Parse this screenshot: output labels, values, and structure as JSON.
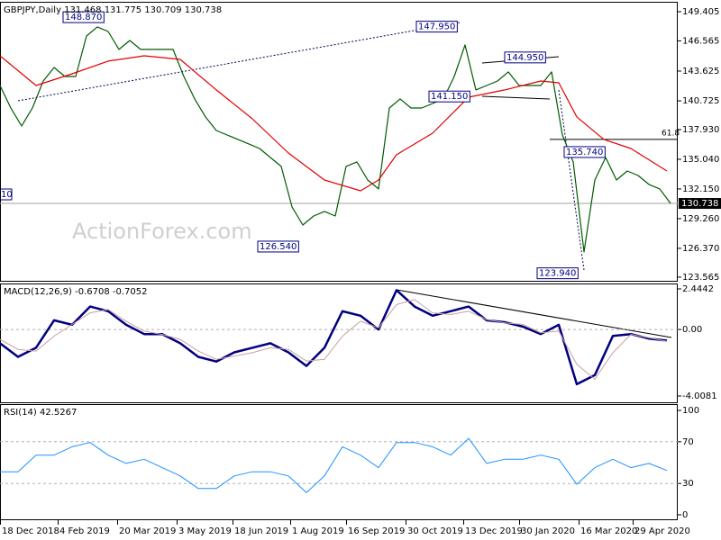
{
  "chart_data": [
    {
      "type": "line",
      "title": "GBPJPY,Daily  131.468 131.775 130.709 130.738",
      "watermark": "ActionForex.com",
      "crash_label": "10",
      "last": 130.738,
      "xlim": [
        0,
        376
      ],
      "ylim": [
        123.12,
        150.28
      ],
      "yticks": [
        149.405,
        146.565,
        143.625,
        140.725,
        {
          "value": 137.93,
          "label": "137.930"
        },
        {
          "value": 135.04,
          "label": "135.040"
        },
        {
          "value": 132.15,
          "label": "132.150"
        },
        {
          "value": 129.26,
          "label": "129.260"
        },
        {
          "value": 126.37,
          "label": "126.370"
        },
        123.565
      ],
      "annotations": [
        {
          "label": "148.870",
          "value": 148.87,
          "x": 35
        },
        {
          "label": "147.950",
          "value": 147.95,
          "x": 231
        },
        {
          "label": "144.950",
          "value": 144.95,
          "x": 280
        },
        {
          "label": "141.150",
          "value": 141.15,
          "x": 238
        },
        {
          "label": "135.740",
          "value": 135.74,
          "x": 313
        },
        {
          "label": "126.540",
          "value": 126.54,
          "x": 143
        },
        {
          "label": "123.940",
          "value": 123.94,
          "x": 298
        }
      ],
      "fib": {
        "label": "61.8",
        "value": 136.97,
        "x": 305
      },
      "series": [
        {
          "color": "#005a00",
          "width": 1.2,
          "x": [
            0,
            6,
            12,
            18,
            24,
            30,
            36,
            42,
            48,
            54,
            60,
            66,
            72,
            78,
            84,
            90,
            96,
            102,
            108,
            114,
            120,
            126,
            132,
            138,
            144,
            150,
            156,
            162,
            168,
            174,
            180,
            186,
            192,
            198,
            204,
            210,
            216,
            222,
            228,
            234,
            240,
            246,
            252,
            258,
            264,
            270,
            276,
            282,
            288,
            294,
            300,
            306,
            312,
            318,
            324,
            330,
            336,
            342,
            348,
            354,
            360,
            366,
            372
          ],
          "values": [
            142.22,
            140.03,
            138.28,
            140.03,
            142.66,
            143.97,
            143.1,
            143.1,
            147.04,
            147.92,
            147.48,
            145.73,
            146.6,
            145.73,
            145.73,
            145.73,
            145.73,
            143.1,
            140.91,
            139.16,
            137.84,
            137.4,
            136.97,
            136.53,
            136.09,
            135.21,
            134.34,
            130.4,
            128.64,
            129.52,
            129.96,
            129.52,
            134.34,
            134.78,
            133.02,
            132.15,
            140.03,
            140.91,
            140.03,
            140.03,
            140.47,
            140.91,
            143.1,
            146.17,
            141.79,
            142.22,
            142.66,
            143.54,
            142.22,
            142.22,
            142.22,
            143.54,
            137.4,
            134.78,
            126.02,
            133.02,
            135.21,
            133.02,
            133.9,
            133.46,
            132.59,
            132.15,
            130.74
          ]
        },
        {
          "color": "#e00000",
          "width": 1.2,
          "x": [
            0,
            20,
            40,
            60,
            80,
            100,
            120,
            140,
            160,
            180,
            200,
            210,
            220,
            240,
            260,
            280,
            300,
            310,
            320,
            335,
            350,
            370
          ],
          "values": [
            145.11,
            142.22,
            143.36,
            144.59,
            145.11,
            144.76,
            141.79,
            138.98,
            135.65,
            133.02,
            131.97,
            133.02,
            135.48,
            137.58,
            141.08,
            141.79,
            142.66,
            142.48,
            139.16,
            136.97,
            136.09,
            133.9
          ]
        }
      ]
    },
    {
      "type": "line",
      "title": "MACD(12,26,9) -0.6708 -0.7052",
      "xlim": [
        0,
        376
      ],
      "ylim": [
        -4.442,
        2.715
      ],
      "yticks": [
        2.4442,
        {
          "value": 0,
          "label": "0.00"
        },
        -4.0081
      ],
      "levels": [
        0
      ],
      "series": [
        {
          "color": "#000080",
          "width": 2.5,
          "x": [
            0,
            10,
            20,
            30,
            40,
            50,
            60,
            70,
            80,
            90,
            100,
            110,
            120,
            130,
            140,
            150,
            160,
            170,
            180,
            190,
            200,
            210,
            220,
            230,
            240,
            250,
            260,
            270,
            280,
            290,
            300,
            310,
            320,
            330,
            340,
            350,
            360,
            370
          ],
          "values": [
            -0.83,
            -1.65,
            -1.1,
            0.55,
            0.28,
            1.38,
            1.1,
            0.28,
            -0.28,
            -0.28,
            -0.83,
            -1.65,
            -1.93,
            -1.38,
            -1.1,
            -0.83,
            -1.38,
            -2.2,
            -1.1,
            1.1,
            0.83,
            0,
            2.37,
            1.38,
            0.83,
            1.1,
            1.38,
            0.55,
            0.44,
            0.17,
            -0.28,
            0.28,
            -3.3,
            -2.75,
            -0.39,
            -0.28,
            -0.55,
            -0.67
          ]
        },
        {
          "color": "#c8a0a0",
          "width": 1,
          "x": [
            0,
            10,
            20,
            30,
            40,
            50,
            60,
            70,
            80,
            90,
            100,
            110,
            120,
            130,
            140,
            150,
            160,
            170,
            180,
            190,
            200,
            210,
            220,
            230,
            240,
            250,
            260,
            270,
            280,
            290,
            300,
            310,
            320,
            330,
            340,
            350,
            360,
            370
          ],
          "values": [
            -0.6,
            -1.2,
            -1.3,
            -0.4,
            0.3,
            1.0,
            1.2,
            0.5,
            -0.1,
            -0.3,
            -0.6,
            -1.3,
            -1.8,
            -1.6,
            -1.4,
            -1.1,
            -1.2,
            -1.9,
            -1.8,
            -0.4,
            0.5,
            0.1,
            1.5,
            1.8,
            1.0,
            0.9,
            1.1,
            0.6,
            0.4,
            0.3,
            -0.2,
            -0.1,
            -2.1,
            -3.0,
            -1.4,
            -0.3,
            -0.5,
            -0.71
          ]
        }
      ]
    },
    {
      "type": "line",
      "title": "RSI(14) 42.5267",
      "xlim": [
        0,
        376
      ],
      "ylim": [
        -5.2,
        105.2
      ],
      "yticks": [
        100,
        70,
        30,
        0
      ],
      "levels": [
        70,
        30
      ],
      "xticks": [
        {
          "value": 0,
          "label": "18 Dec 2018"
        },
        {
          "value": 32,
          "label": "4 Feb 2019"
        },
        {
          "value": 65,
          "label": "20 Mar 2019"
        },
        {
          "value": 98,
          "label": "3 May 2019"
        },
        {
          "value": 129,
          "label": "18 Jun 2019"
        },
        {
          "value": 161,
          "label": "1 Aug 2019"
        },
        {
          "value": 192,
          "label": "16 Sep 2019"
        },
        {
          "value": 225,
          "label": "30 Oct 2019"
        },
        {
          "value": 257,
          "label": "13 Dec 2019"
        },
        {
          "value": 288,
          "label": "30 Jan 2020"
        },
        {
          "value": 321,
          "label": "16 Mar 2020"
        },
        {
          "value": 351,
          "label": "29 Apr 2020"
        }
      ],
      "series": [
        {
          "color": "#1e90ff",
          "width": 1,
          "x": [
            0,
            10,
            20,
            30,
            40,
            50,
            60,
            70,
            80,
            90,
            100,
            110,
            120,
            130,
            140,
            150,
            160,
            170,
            180,
            190,
            200,
            210,
            220,
            230,
            240,
            250,
            260,
            270,
            280,
            290,
            300,
            310,
            320,
            330,
            340,
            350,
            360,
            370
          ],
          "values": [
            41.2,
            41.2,
            57.2,
            57.2,
            65.2,
            69.2,
            57.2,
            49.2,
            53.2,
            45.2,
            37.2,
            25.2,
            25.2,
            37.2,
            41.2,
            41.2,
            37.2,
            21.2,
            37.2,
            65.2,
            57.2,
            45.2,
            69.2,
            69.2,
            65.2,
            57.2,
            73.2,
            49.2,
            53.2,
            53.2,
            57.2,
            53.2,
            29.2,
            45.2,
            53.2,
            45.2,
            49.2,
            42.53
          ]
        }
      ]
    }
  ]
}
